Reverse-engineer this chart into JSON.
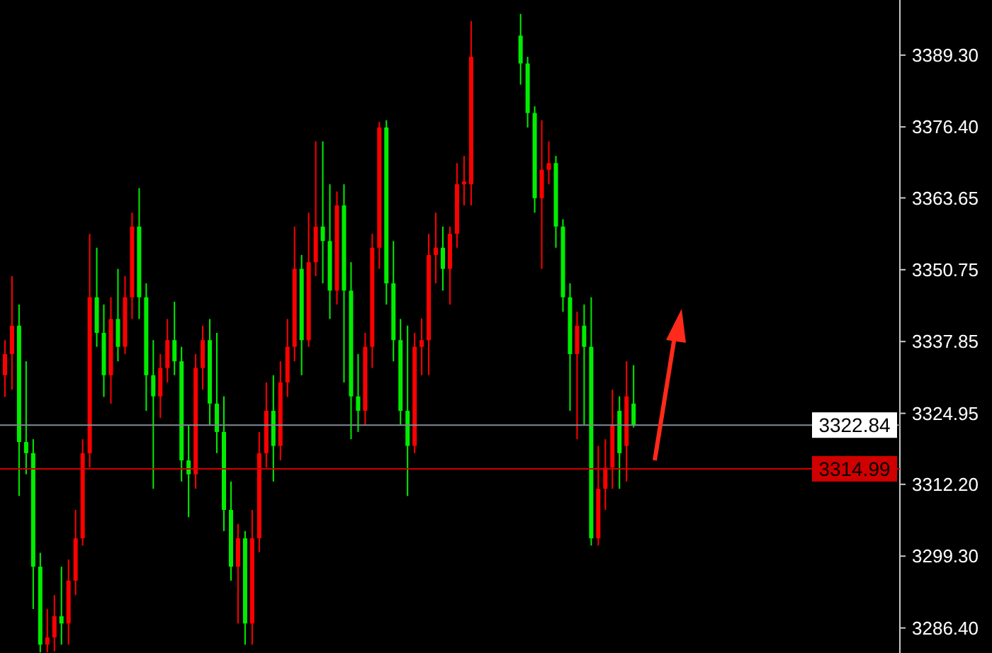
{
  "chart_data": {
    "type": "candlestick",
    "categories": [
      null,
      null,
      null,
      null,
      null,
      null,
      null,
      null,
      null,
      null,
      null,
      null,
      null,
      null,
      null,
      null,
      null,
      null,
      null,
      null,
      null,
      null,
      null,
      null,
      null,
      null,
      null,
      null,
      null,
      null,
      null,
      null,
      null,
      null,
      null,
      null,
      null,
      null,
      null,
      null,
      null,
      null,
      null,
      null,
      null,
      null,
      null,
      null,
      null,
      null,
      null,
      null,
      null,
      null,
      null,
      null,
      null,
      null,
      null,
      null,
      null,
      null,
      null,
      null,
      null,
      null,
      null,
      null,
      null,
      null,
      null,
      null,
      null,
      null,
      null,
      null,
      null,
      null,
      null,
      null,
      null,
      null,
      null,
      null,
      null,
      null,
      null,
      null,
      null,
      null,
      null,
      null,
      null,
      null,
      null,
      null,
      null,
      null,
      null,
      null,
      null,
      null,
      null,
      null,
      null,
      null,
      null,
      null,
      null,
      null,
      null,
      null,
      null,
      null,
      null,
      null,
      null,
      null,
      null,
      null,
      null,
      null,
      null,
      null,
      null,
      null,
      null
    ],
    "ohlc": [
      [
        3331.8,
        3338.1,
        3327.9,
        3335.6
      ],
      [
        3335.6,
        3349.6,
        3329.2,
        3340.7
      ],
      [
        3340.7,
        3344.5,
        3310.1,
        3319.8
      ],
      [
        3319.8,
        3334.3,
        3314.0,
        3317.8
      ],
      [
        3317.8,
        3320.3,
        3289.8,
        3297.4
      ],
      [
        3297.4,
        3299.9,
        3282.0,
        3283.4
      ],
      [
        3283.4,
        3289.8,
        3282.0,
        3284.7
      ],
      [
        3284.7,
        3292.3,
        3282.2,
        3288.5
      ],
      [
        3288.5,
        3297.4,
        3283.4,
        3287.2
      ],
      [
        3287.2,
        3298.7,
        3283.4,
        3294.9
      ],
      [
        3294.9,
        3307.6,
        3292.3,
        3302.5
      ],
      [
        3302.5,
        3320.3,
        3301.2,
        3317.8
      ],
      [
        3317.8,
        3357.2,
        3315.2,
        3345.8
      ],
      [
        3345.8,
        3354.7,
        3336.9,
        3339.4
      ],
      [
        3339.4,
        3344.5,
        3327.9,
        3331.8
      ],
      [
        3331.8,
        3345.8,
        3326.7,
        3341.9
      ],
      [
        3341.9,
        3350.9,
        3334.3,
        3336.9
      ],
      [
        3336.9,
        3349.6,
        3335.6,
        3345.8
      ],
      [
        3345.8,
        3361.0,
        3341.9,
        3358.5
      ],
      [
        3358.5,
        3365.4,
        3341.9,
        3345.8
      ],
      [
        3345.8,
        3348.3,
        3325.4,
        3331.8
      ],
      [
        3331.8,
        3338.1,
        3311.4,
        3328.0
      ],
      [
        3328.0,
        3335.6,
        3324.1,
        3333.1
      ],
      [
        3333.1,
        3341.9,
        3330.5,
        3338.1
      ],
      [
        3338.1,
        3345.0,
        3331.8,
        3334.3
      ],
      [
        3334.3,
        3336.9,
        3312.7,
        3316.5
      ],
      [
        3316.5,
        3322.9,
        3306.3,
        3314.0
      ],
      [
        3314.0,
        3335.6,
        3311.4,
        3333.1
      ],
      [
        3333.1,
        3340.7,
        3329.2,
        3338.1
      ],
      [
        3338.1,
        3341.9,
        3322.9,
        3326.7
      ],
      [
        3326.7,
        3339.4,
        3317.8,
        3321.6
      ],
      [
        3321.6,
        3328.0,
        3303.8,
        3307.6
      ],
      [
        3307.6,
        3312.7,
        3294.9,
        3297.4
      ],
      [
        3297.4,
        3305.1,
        3287.2,
        3302.5
      ],
      [
        3302.5,
        3303.8,
        3283.4,
        3287.2
      ],
      [
        3287.2,
        3307.6,
        3283.4,
        3302.5
      ],
      [
        3302.5,
        3321.6,
        3300.0,
        3317.8
      ],
      [
        3317.8,
        3330.5,
        3315.2,
        3325.4
      ],
      [
        3325.4,
        3331.8,
        3312.7,
        3319.1
      ],
      [
        3319.1,
        3334.3,
        3316.5,
        3330.5
      ],
      [
        3330.5,
        3341.9,
        3327.9,
        3336.9
      ],
      [
        3336.9,
        3358.5,
        3334.3,
        3350.9
      ],
      [
        3350.9,
        3353.4,
        3331.8,
        3338.1
      ],
      [
        3338.1,
        3361.0,
        3336.9,
        3352.1
      ],
      [
        3352.1,
        3373.8,
        3349.6,
        3358.5
      ],
      [
        3358.5,
        3373.8,
        3348.3,
        3355.9
      ],
      [
        3355.9,
        3366.1,
        3341.9,
        3347.0
      ],
      [
        3347.0,
        3364.8,
        3344.5,
        3362.3
      ],
      [
        3362.3,
        3366.1,
        3330.5,
        3347.0
      ],
      [
        3347.0,
        3352.1,
        3320.3,
        3328.0
      ],
      [
        3328.0,
        3335.6,
        3321.6,
        3325.4
      ],
      [
        3325.4,
        3339.4,
        3322.9,
        3336.9
      ],
      [
        3336.9,
        3357.2,
        3333.1,
        3354.7
      ],
      [
        3354.7,
        3377.3,
        3350.9,
        3376.3
      ],
      [
        3376.3,
        3377.6,
        3344.5,
        3348.3
      ],
      [
        3348.3,
        3355.9,
        3334.3,
        3338.1
      ],
      [
        3338.1,
        3341.9,
        3322.9,
        3325.4
      ],
      [
        3325.4,
        3340.7,
        3310.1,
        3319.1
      ],
      [
        3319.1,
        3339.4,
        3317.8,
        3336.9
      ],
      [
        3336.9,
        3342.0,
        3331.8,
        3338.1
      ],
      [
        3338.1,
        3357.2,
        3331.8,
        3353.4
      ],
      [
        3353.4,
        3361.0,
        3348.3,
        3354.7
      ],
      [
        3354.7,
        3358.5,
        3347.0,
        3350.9
      ],
      [
        3350.9,
        3358.5,
        3344.5,
        3357.2
      ],
      [
        3357.2,
        3369.9,
        3354.7,
        3366.1
      ],
      [
        3366.1,
        3371.2,
        3362.3,
        3366.6
      ],
      [
        3366.1,
        3395.4,
        3362.3,
        3389.0
      ],
      null,
      null,
      null,
      null,
      null,
      null,
      [
        3392.8,
        3396.7,
        3384.0,
        3387.8
      ],
      [
        3387.8,
        3389.0,
        3376.3,
        3378.9
      ],
      [
        3378.9,
        3380.1,
        3361.0,
        3363.6
      ],
      [
        3363.6,
        3377.6,
        3350.9,
        3368.7
      ],
      [
        3368.7,
        3373.8,
        3366.1,
        3369.9
      ],
      [
        3369.9,
        3371.2,
        3354.7,
        3358.5
      ],
      [
        3358.5,
        3359.8,
        3343.2,
        3345.8
      ],
      [
        3345.8,
        3348.3,
        3325.4,
        3335.6
      ],
      [
        3335.6,
        3343.2,
        3320.3,
        3340.7
      ],
      [
        3340.7,
        3344.5,
        3322.9,
        3336.9
      ],
      [
        3336.9,
        3345.8,
        3301.2,
        3302.5
      ],
      [
        3302.5,
        3319.1,
        3301.2,
        3311.4
      ],
      [
        3311.4,
        3320.3,
        3307.6,
        3315.2
      ],
      [
        3315.2,
        3329.2,
        3311.4,
        3322.9
      ],
      [
        3325.4,
        3328.0,
        3311.4,
        3317.8
      ],
      [
        3319.1,
        3334.3,
        3312.7,
        3328.0
      ],
      [
        3326.7,
        3333.6,
        3322.4,
        3322.8
      ],
      null,
      null,
      null,
      null,
      null,
      null,
      null,
      null,
      null,
      null,
      null,
      null,
      null,
      null,
      null,
      null,
      null,
      null,
      null,
      null,
      null,
      null,
      null,
      null,
      null,
      null,
      null,
      null,
      null,
      null,
      null,
      null,
      null,
      null,
      null,
      null,
      null
    ],
    "colors": [
      "#ff0000",
      "#ff0000",
      "#00ee00",
      "#00ee00",
      "#00ee00",
      "#00ee00",
      "#ff0000",
      "#ff0000",
      "#00ee00",
      "#ff0000",
      "#ff0000",
      "#ff0000",
      "#ff0000",
      "#00ee00",
      "#00ee00",
      "#ff0000",
      "#00ee00",
      "#ff0000",
      "#ff0000",
      "#00ee00",
      "#00ee00",
      "#00ee00",
      "#ff0000",
      "#ff0000",
      "#00ee00",
      "#00ee00",
      "#00ee00",
      "#ff0000",
      "#ff0000",
      "#00ee00",
      "#00ee00",
      "#00ee00",
      "#00ee00",
      "#ff0000",
      "#00ee00",
      "#ff0000",
      "#ff0000",
      "#ff0000",
      "#00ee00",
      "#ff0000",
      "#ff0000",
      "#ff0000",
      "#00ee00",
      "#ff0000",
      "#ff0000",
      "#00ee00",
      "#00ee00",
      "#ff0000",
      "#00ee00",
      "#00ee00",
      "#00ee00",
      "#ff0000",
      "#ff0000",
      "#ff0000",
      "#00ee00",
      "#00ee00",
      "#00ee00",
      "#00ee00",
      "#ff0000",
      "#ff0000",
      "#ff0000",
      "#ff0000",
      "#00ee00",
      "#ff0000",
      "#ff0000",
      "#ff0000",
      "#ff0000",
      null,
      null,
      null,
      null,
      null,
      null,
      "#00ee00",
      "#00ee00",
      "#00ee00",
      "#ff0000",
      "#ff0000",
      "#00ee00",
      "#00ee00",
      "#00ee00",
      "#ff0000",
      "#00ee00",
      "#00ee00",
      "#ff0000",
      "#ff0000",
      "#ff0000",
      "#00ee00",
      "#ff0000",
      "#00ee00",
      null,
      null,
      null,
      null,
      null,
      null,
      null,
      null,
      null,
      null,
      null,
      null,
      null,
      null,
      null,
      null,
      null,
      null,
      null,
      null,
      null,
      null,
      null,
      null,
      null,
      null,
      null,
      null,
      null,
      null,
      null,
      null,
      null,
      null,
      null,
      null,
      null
    ],
    "ylim": [
      3281.9,
      3399.2
    ],
    "yticks": [
      {
        "value": 3286.4,
        "label": "3286.40"
      },
      {
        "value": 3299.3,
        "label": "3299.30"
      },
      {
        "value": 3312.2,
        "label": "3312.20"
      },
      {
        "value": 3324.95,
        "label": "3324.95"
      },
      {
        "value": 3337.85,
        "label": "3337.85"
      },
      {
        "value": 3350.75,
        "label": "3350.75"
      },
      {
        "value": 3363.65,
        "label": "3363.65"
      },
      {
        "value": 3376.4,
        "label": "3376.40"
      },
      {
        "value": 3389.3,
        "label": "3389.30"
      }
    ],
    "ref_lines": [
      {
        "axis": "y",
        "value": 3322.84,
        "label": "3322.84",
        "color": "#7f8a96"
      },
      {
        "axis": "y",
        "value": 3314.99,
        "label": "3314.99",
        "color": "#d00000"
      }
    ],
    "grid": false
  }
}
